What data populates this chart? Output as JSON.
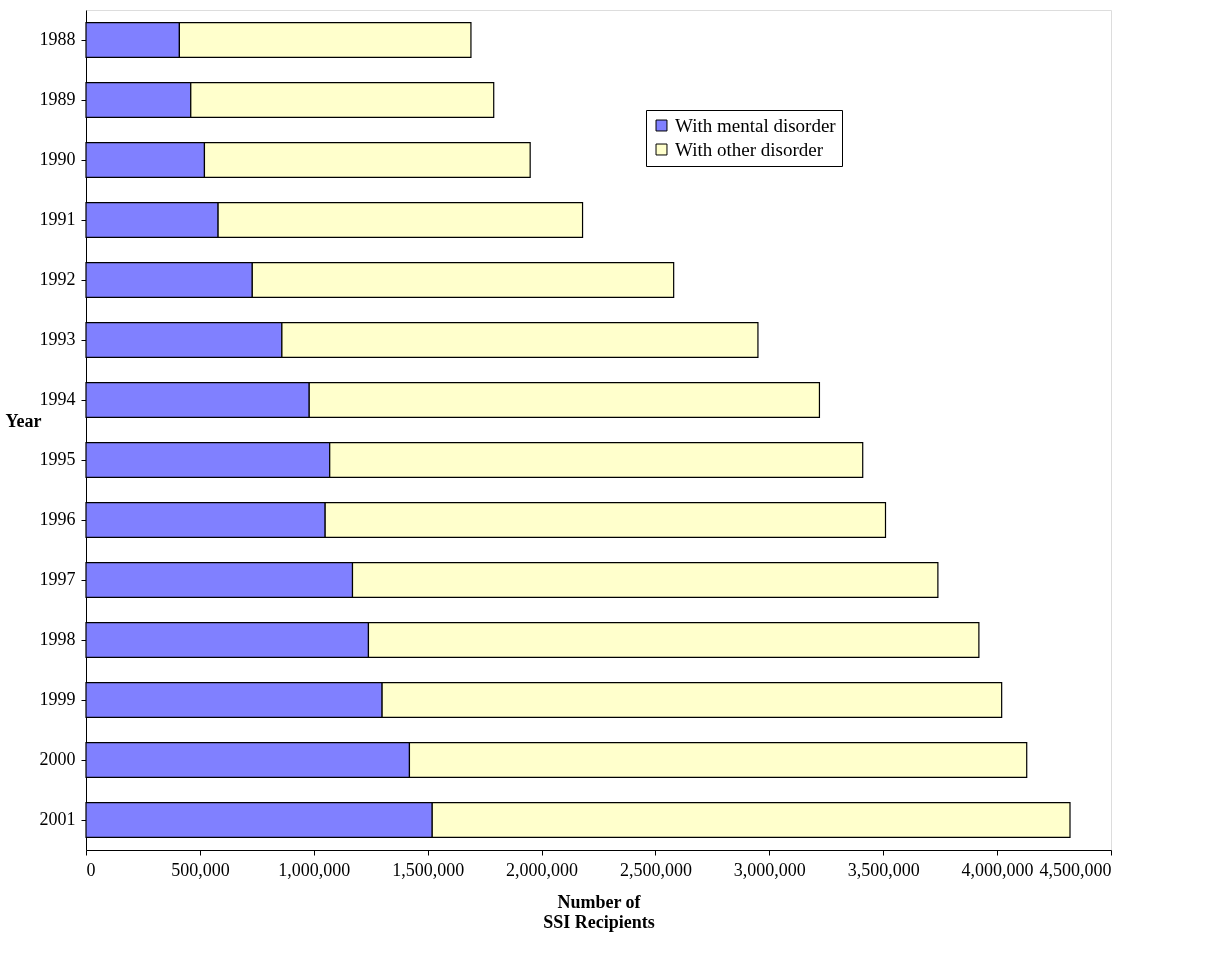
{
  "chart_data": {
    "type": "bar",
    "orientation": "horizontal",
    "stacked": true,
    "categories": [
      "1988",
      "1989",
      "1990",
      "1991",
      "1992",
      "1993",
      "1994",
      "1995",
      "1996",
      "1997",
      "1998",
      "1999",
      "2000",
      "2001"
    ],
    "series": [
      {
        "name": "With mental disorder",
        "color": "#8080ff",
        "values": [
          410000,
          460000,
          520000,
          580000,
          730000,
          860000,
          980000,
          1070000,
          1050000,
          1170000,
          1240000,
          1300000,
          1420000,
          1520000
        ]
      },
      {
        "name": "With other disorder",
        "color": "#ffffcc",
        "values": [
          1280000,
          1330000,
          1430000,
          1600000,
          1850000,
          2090000,
          2240000,
          2340000,
          2460000,
          2570000,
          2680000,
          2720000,
          2710000,
          2800000
        ]
      }
    ],
    "xlabel": "Number of\nSSI Recipients",
    "ylabel": "Year",
    "xlim": [
      0,
      4500000
    ],
    "xticks": [
      0,
      {
        "value": 500000,
        "label": "500,000"
      },
      {
        "value": 1000000,
        "label": "1,000,000"
      },
      {
        "value": 1500000,
        "label": "1,500,000"
      },
      {
        "value": 2000000,
        "label": "2,000,000"
      },
      {
        "value": 2500000,
        "label": "2,500,000"
      },
      {
        "value": 3000000,
        "label": "3,000,000"
      },
      {
        "value": 3500000,
        "label": "3,500,000"
      },
      {
        "value": 4000000,
        "label": "4,000,000"
      },
      {
        "value": 4500000,
        "label": "4,500,000"
      }
    ],
    "grid": false,
    "legend": "top right"
  }
}
